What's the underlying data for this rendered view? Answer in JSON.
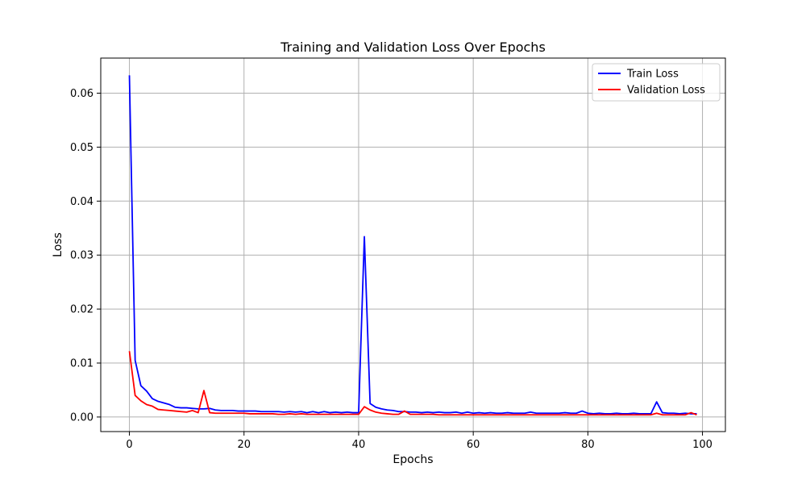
{
  "chart_data": {
    "type": "line",
    "title": "Training and Validation Loss Over Epochs",
    "xlabel": "Epochs",
    "ylabel": "Loss",
    "xlim": [
      -5,
      104
    ],
    "ylim": [
      -0.0027,
      0.0665
    ],
    "xticks": [
      0,
      20,
      40,
      60,
      80,
      100
    ],
    "yticks": [
      0.0,
      0.01,
      0.02,
      0.03,
      0.04,
      0.05,
      0.06
    ],
    "xtick_labels": [
      "0",
      "20",
      "40",
      "60",
      "80",
      "100"
    ],
    "ytick_labels": [
      "0.00",
      "0.01",
      "0.02",
      "0.03",
      "0.04",
      "0.05",
      "0.06"
    ],
    "grid": true,
    "legend_position": "top-right",
    "x": [
      0,
      1,
      2,
      3,
      4,
      5,
      6,
      7,
      8,
      9,
      10,
      11,
      12,
      13,
      14,
      15,
      16,
      17,
      18,
      19,
      20,
      21,
      22,
      23,
      24,
      25,
      26,
      27,
      28,
      29,
      30,
      31,
      32,
      33,
      34,
      35,
      36,
      37,
      38,
      39,
      40,
      41,
      42,
      43,
      44,
      45,
      46,
      47,
      48,
      49,
      50,
      51,
      52,
      53,
      54,
      55,
      56,
      57,
      58,
      59,
      60,
      61,
      62,
      63,
      64,
      65,
      66,
      67,
      68,
      69,
      70,
      71,
      72,
      73,
      74,
      75,
      76,
      77,
      78,
      79,
      80,
      81,
      82,
      83,
      84,
      85,
      86,
      87,
      88,
      89,
      90,
      91,
      92,
      93,
      94,
      95,
      96,
      97,
      98,
      99
    ],
    "series": [
      {
        "name": "Train Loss",
        "color": "#0000ff",
        "values": [
          0.0633,
          0.0105,
          0.0058,
          0.0048,
          0.0034,
          0.0029,
          0.0026,
          0.0023,
          0.0018,
          0.0017,
          0.0017,
          0.0016,
          0.0015,
          0.0015,
          0.0016,
          0.0013,
          0.0012,
          0.0012,
          0.0012,
          0.0011,
          0.0011,
          0.0011,
          0.0011,
          0.001,
          0.001,
          0.001,
          0.001,
          0.0009,
          0.001,
          0.0009,
          0.001,
          0.0008,
          0.001,
          0.0008,
          0.001,
          0.0008,
          0.0009,
          0.0008,
          0.0009,
          0.0008,
          0.0008,
          0.0334,
          0.0025,
          0.0018,
          0.0015,
          0.0013,
          0.0012,
          0.001,
          0.001,
          0.0009,
          0.0009,
          0.0008,
          0.0009,
          0.0008,
          0.0009,
          0.0008,
          0.0008,
          0.0009,
          0.0007,
          0.0009,
          0.0007,
          0.0008,
          0.0007,
          0.0008,
          0.0007,
          0.0007,
          0.0008,
          0.0007,
          0.0007,
          0.0007,
          0.0009,
          0.0007,
          0.0007,
          0.0007,
          0.0007,
          0.0007,
          0.0008,
          0.0007,
          0.0007,
          0.0011,
          0.0007,
          0.0006,
          0.0007,
          0.0006,
          0.0006,
          0.0007,
          0.0006,
          0.0006,
          0.0007,
          0.0006,
          0.0006,
          0.0006,
          0.0028,
          0.0008,
          0.0007,
          0.0007,
          0.0006,
          0.0007,
          0.0006,
          0.0006
        ]
      },
      {
        "name": "Validation Loss",
        "color": "#ff0000",
        "values": [
          0.0122,
          0.004,
          0.003,
          0.0023,
          0.002,
          0.0014,
          0.0013,
          0.0012,
          0.0011,
          0.001,
          0.0009,
          0.0012,
          0.0008,
          0.0049,
          0.0008,
          0.0007,
          0.0007,
          0.0007,
          0.0007,
          0.0007,
          0.0007,
          0.0006,
          0.0006,
          0.0006,
          0.0006,
          0.0006,
          0.0005,
          0.0005,
          0.0006,
          0.0005,
          0.0006,
          0.0005,
          0.0005,
          0.0005,
          0.0005,
          0.0005,
          0.0005,
          0.0005,
          0.0005,
          0.0005,
          0.0005,
          0.0019,
          0.0013,
          0.0009,
          0.0007,
          0.0006,
          0.0005,
          0.0005,
          0.0011,
          0.0005,
          0.0005,
          0.0005,
          0.0005,
          0.0005,
          0.0004,
          0.0004,
          0.0004,
          0.0004,
          0.0004,
          0.0004,
          0.0004,
          0.0004,
          0.0004,
          0.0004,
          0.0004,
          0.0004,
          0.0004,
          0.0004,
          0.0004,
          0.0004,
          0.0004,
          0.0004,
          0.0004,
          0.0004,
          0.0004,
          0.0004,
          0.0004,
          0.0004,
          0.0004,
          0.0004,
          0.0004,
          0.0004,
          0.0004,
          0.0004,
          0.0004,
          0.0004,
          0.0004,
          0.0004,
          0.0004,
          0.0004,
          0.0004,
          0.0004,
          0.0007,
          0.0004,
          0.0004,
          0.0004,
          0.0004,
          0.0004,
          0.0008,
          0.0004
        ]
      }
    ]
  }
}
